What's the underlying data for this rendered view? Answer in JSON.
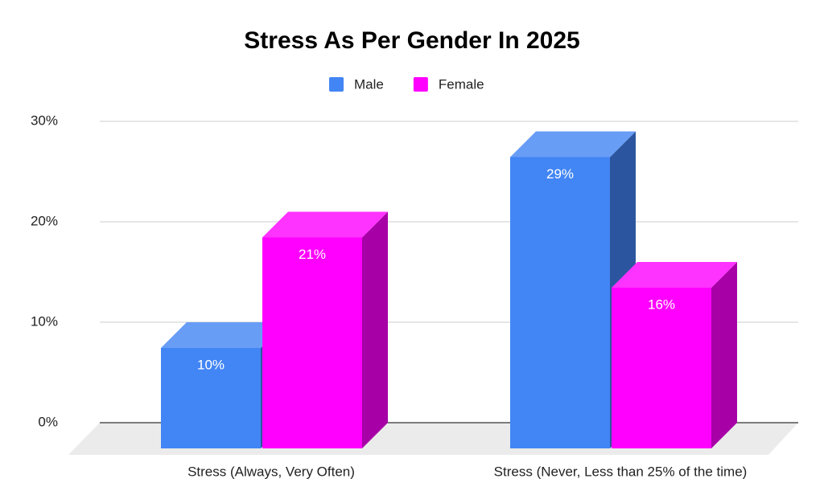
{
  "chart_data": {
    "type": "bar3d",
    "title": "Stress As Per Gender In 2025",
    "categories": [
      "Stress (Always, Very Often)",
      "Stress (Never, Less than 25% of the time)"
    ],
    "series": [
      {
        "name": "Male",
        "color": "#4285f4",
        "values": [
          10,
          29
        ],
        "value_labels": [
          "10%",
          "29%"
        ]
      },
      {
        "name": "Female",
        "color": "#ff00ff",
        "values": [
          21,
          16
        ],
        "value_labels": [
          "21%",
          "16%"
        ]
      }
    ],
    "ylim": [
      0,
      30
    ],
    "yticks": [
      {
        "value": 0,
        "label": "0%"
      },
      {
        "value": 10,
        "label": "10%"
      },
      {
        "value": 20,
        "label": "20%"
      },
      {
        "value": 30,
        "label": "30%"
      }
    ],
    "grid": true,
    "legend": "top"
  }
}
